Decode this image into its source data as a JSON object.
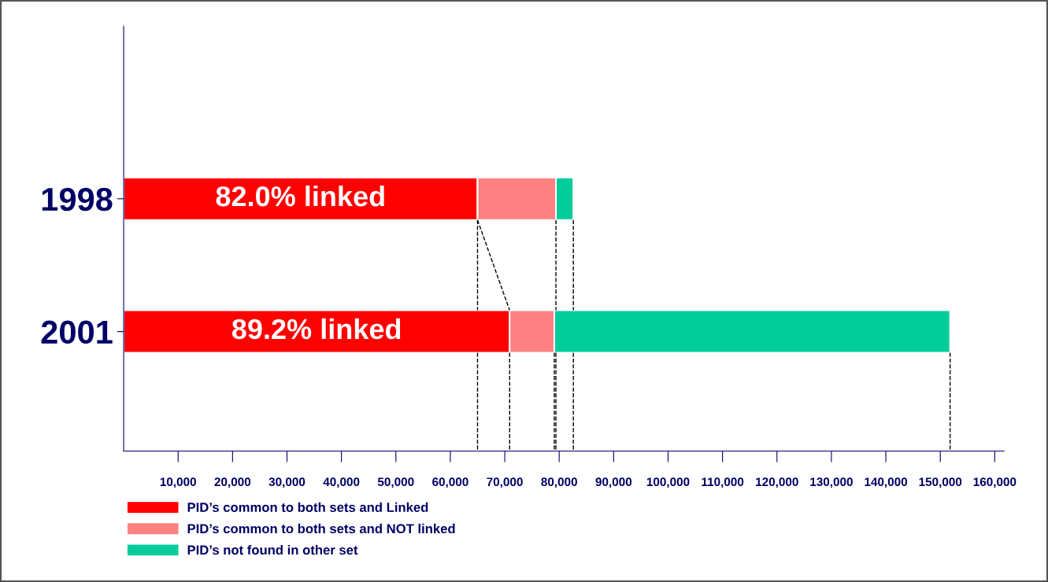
{
  "chart_data": {
    "type": "bar",
    "orientation": "horizontal",
    "stacked": true,
    "categories": [
      "1998",
      "2001"
    ],
    "series": [
      {
        "name": "PID’s common to both sets and Linked",
        "color": "#ff0000",
        "values": [
          65000,
          70900
        ]
      },
      {
        "name": "PID’s common to both sets and NOT linked",
        "color": "#ff8080",
        "values": [
          14400,
          8200
        ]
      },
      {
        "name": "PID’s not found in other set",
        "color": "#00cc99",
        "values": [
          3200,
          72700
        ]
      }
    ],
    "xlim": [
      0,
      161700
    ],
    "xticks": [
      {
        "value": 10000,
        "label": "10,000"
      },
      {
        "value": 20000,
        "label": "20,000"
      },
      {
        "value": 30000,
        "label": "30,000"
      },
      {
        "value": 40000,
        "label": "40,000"
      },
      {
        "value": 50000,
        "label": "50,000"
      },
      {
        "value": 60000,
        "label": "60,000"
      },
      {
        "value": 70000,
        "label": "70,000"
      },
      {
        "value": 80000,
        "label": "80,000"
      },
      {
        "value": 90000,
        "label": "90,000"
      },
      {
        "value": 100000,
        "label": "100,000"
      },
      {
        "value": 110000,
        "label": "110,000"
      },
      {
        "value": 120000,
        "label": "120,000"
      },
      {
        "value": 130000,
        "label": "130,000"
      },
      {
        "value": 140000,
        "label": "140,000"
      },
      {
        "value": 150000,
        "label": "150,000"
      },
      {
        "value": 160000,
        "label": "160,000"
      }
    ],
    "annotations": [
      "82.0% linked",
      "89.2% linked"
    ],
    "legend": "bottom left",
    "grid": false
  }
}
